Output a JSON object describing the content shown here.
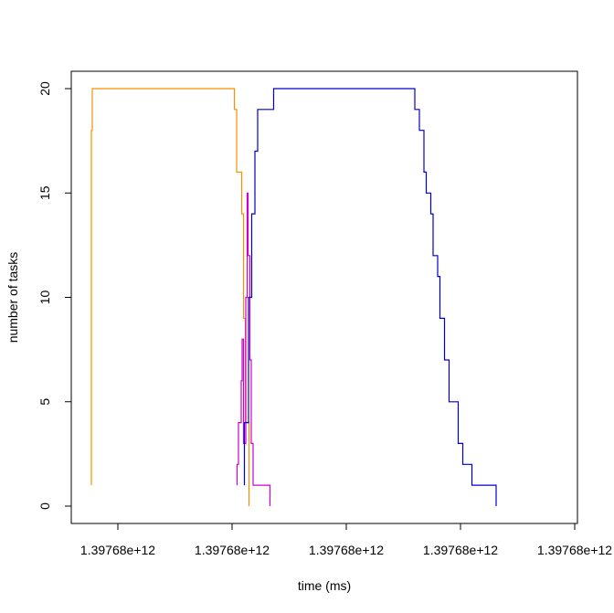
{
  "chart_data": {
    "type": "line",
    "title": "",
    "xlabel": "time (ms)",
    "ylabel": "number of tasks",
    "xlim": [
      0,
      100
    ],
    "ylim": [
      0,
      20
    ],
    "x_ticks": [
      {
        "pos": 10,
        "label": "1.39768e+12"
      },
      {
        "pos": 35,
        "label": "1.39768e+12"
      },
      {
        "pos": 60,
        "label": "1.39768e+12"
      },
      {
        "pos": 85,
        "label": "1.39768e+12"
      },
      {
        "pos": 110,
        "label": "1.39768e+12"
      }
    ],
    "y_ticks": [
      0,
      5,
      10,
      15,
      20
    ],
    "grid": false,
    "series": [
      {
        "color": "#ff8c00",
        "points": [
          [
            4.2,
            1
          ],
          [
            4.2,
            18
          ],
          [
            4.4,
            18
          ],
          [
            4.4,
            20
          ],
          [
            35.5,
            20
          ],
          [
            35.5,
            19
          ],
          [
            36.0,
            19
          ],
          [
            36.0,
            16
          ],
          [
            37.1,
            16
          ],
          [
            37.1,
            14
          ],
          [
            37.5,
            14
          ],
          [
            37.5,
            9
          ],
          [
            37.9,
            9
          ],
          [
            37.9,
            4
          ],
          [
            38.7,
            4
          ],
          [
            38.7,
            0
          ]
        ]
      },
      {
        "color": "#cd00cd",
        "points": [
          [
            36.1,
            1
          ],
          [
            36.1,
            2
          ],
          [
            36.4,
            2
          ],
          [
            36.4,
            4
          ],
          [
            37.0,
            4
          ],
          [
            37.0,
            6
          ],
          [
            37.2,
            6
          ],
          [
            37.2,
            8
          ],
          [
            37.5,
            8
          ],
          [
            37.5,
            3
          ],
          [
            38.0,
            3
          ],
          [
            38.0,
            10
          ],
          [
            38.3,
            10
          ],
          [
            38.3,
            15
          ],
          [
            38.5,
            15
          ],
          [
            38.5,
            12
          ],
          [
            38.9,
            12
          ],
          [
            38.9,
            7
          ],
          [
            39.2,
            7
          ],
          [
            39.2,
            3
          ],
          [
            39.6,
            3
          ],
          [
            39.6,
            1
          ],
          [
            43.3,
            1
          ],
          [
            43.3,
            0
          ]
        ]
      },
      {
        "color": "#0000cd",
        "points": [
          [
            37.7,
            1
          ],
          [
            37.7,
            4
          ],
          [
            38.6,
            4
          ],
          [
            38.6,
            10
          ],
          [
            39.3,
            10
          ],
          [
            39.3,
            14
          ],
          [
            40.0,
            14
          ],
          [
            40.0,
            17
          ],
          [
            40.6,
            17
          ],
          [
            40.6,
            19
          ],
          [
            44.1,
            19
          ],
          [
            44.1,
            20
          ],
          [
            75.0,
            20
          ],
          [
            75.0,
            19
          ],
          [
            76.0,
            19
          ],
          [
            76.0,
            18
          ],
          [
            77.0,
            18
          ],
          [
            77.0,
            16
          ],
          [
            77.5,
            16
          ],
          [
            77.5,
            15
          ],
          [
            78.5,
            15
          ],
          [
            78.5,
            14
          ],
          [
            79.0,
            14
          ],
          [
            79.0,
            12
          ],
          [
            80.0,
            12
          ],
          [
            80.0,
            11
          ],
          [
            80.5,
            11
          ],
          [
            80.5,
            9
          ],
          [
            81.5,
            9
          ],
          [
            81.5,
            7
          ],
          [
            82.5,
            7
          ],
          [
            82.5,
            5
          ],
          [
            84.5,
            5
          ],
          [
            84.5,
            3
          ],
          [
            85.5,
            3
          ],
          [
            85.5,
            2
          ],
          [
            87.5,
            2
          ],
          [
            87.5,
            1
          ],
          [
            92.8,
            1
          ],
          [
            92.8,
            0
          ]
        ]
      }
    ]
  }
}
